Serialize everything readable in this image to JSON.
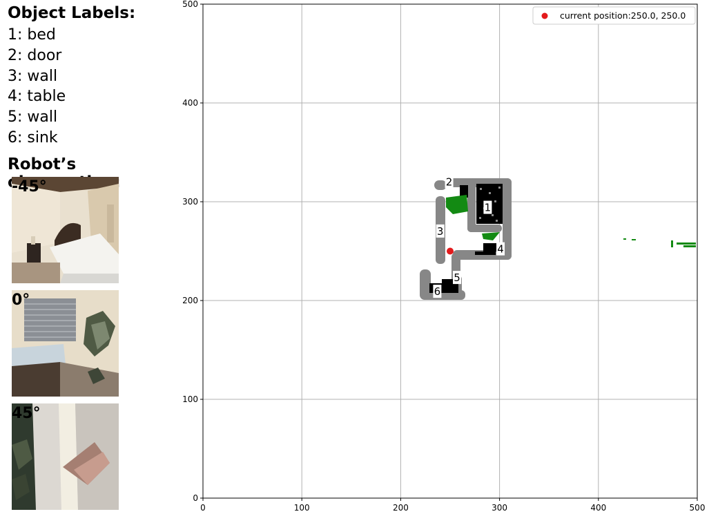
{
  "labels": {
    "heading": "Object Labels:",
    "items": [
      "1: bed",
      "2: door",
      "3: wall",
      "4: table",
      "5: wall",
      "6: sink"
    ]
  },
  "observation": {
    "heading": "Robot’s observation:",
    "views": [
      {
        "angle": "-45°",
        "scene": "bedroom-bed"
      },
      {
        "angle": "0°",
        "scene": "bedroom-window"
      },
      {
        "angle": "45°",
        "scene": "wall-corner"
      }
    ]
  },
  "chart_data": {
    "type": "scatter",
    "title": "",
    "xlabel": "",
    "ylabel": "",
    "xlim": [
      0,
      500
    ],
    "ylim": [
      0,
      500
    ],
    "xticks": [
      0,
      100,
      200,
      300,
      400,
      500
    ],
    "yticks": [
      0,
      100,
      200,
      300,
      400,
      500
    ],
    "grid": true,
    "legend_position": "top-right",
    "series": [
      {
        "name": "current position:250.0, 250.0",
        "x": [
          250.0
        ],
        "y": [
          250.0
        ],
        "color": "#e31a1c"
      }
    ],
    "object_labels": [
      {
        "id": "1",
        "name": "bed",
        "x": 288,
        "y": 294
      },
      {
        "id": "2",
        "name": "door",
        "x": 249,
        "y": 320
      },
      {
        "id": "3",
        "name": "wall",
        "x": 240,
        "y": 270
      },
      {
        "id": "4",
        "name": "table",
        "x": 301,
        "y": 252
      },
      {
        "id": "5",
        "name": "wall",
        "x": 257,
        "y": 223
      },
      {
        "id": "6",
        "name": "sink",
        "x": 237,
        "y": 209
      }
    ],
    "colors": {
      "wall": "#878787",
      "obstacle": "#000000",
      "floor_green": "#138a13",
      "grid": "#b0b0b0",
      "position": "#e31a1c"
    }
  }
}
